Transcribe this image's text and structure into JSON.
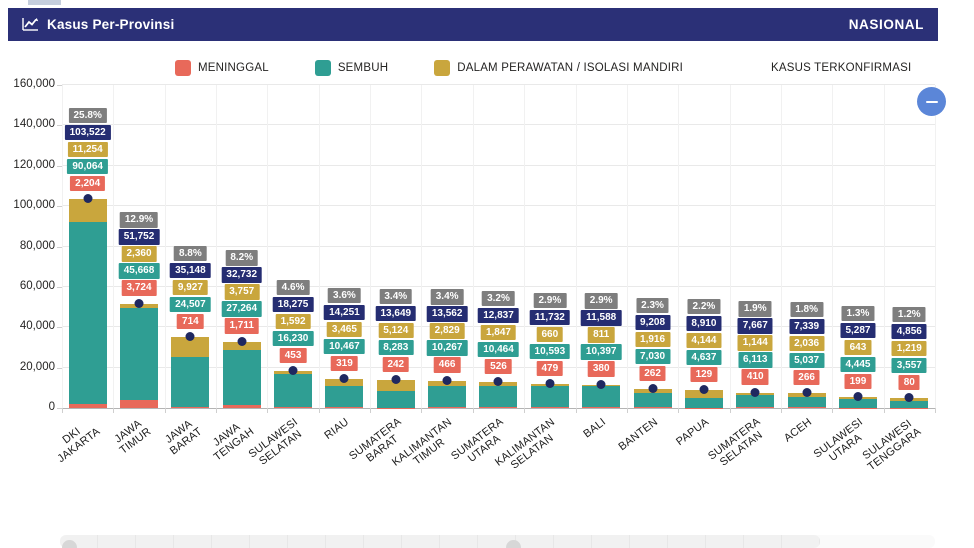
{
  "header": {
    "title": "Kasus Per-Provinsi",
    "region_label": "NASIONAL"
  },
  "legend": [
    {
      "label": "MENINGGAL",
      "color": "#E8695A"
    },
    {
      "label": "SEMBUH",
      "color": "#2F9E93"
    },
    {
      "label": "DALAM PERAWATAN / ISOLASI MANDIRI",
      "color": "#C9A63D"
    },
    {
      "label": "KASUS TERKONFIRMASI",
      "color": null
    }
  ],
  "colors": {
    "header_bg": "#2B3077",
    "percent_box": "#7E7E7E",
    "confirmed_box": "#252D72",
    "confirmed_dot": "#1F2860",
    "scroll_button": "#5B86D8"
  },
  "chart_data": {
    "type": "bar",
    "stacked": true,
    "title": "Kasus Per-Provinsi",
    "xlabel": "",
    "ylabel": "",
    "ylim": [
      0,
      160000
    ],
    "ytick_step": 20000,
    "grid": true,
    "legend_position": "top",
    "categories": [
      "DKI JAKARTA",
      "JAWA TIMUR",
      "JAWA BARAT",
      "JAWA TENGAH",
      "SULAWESI SELATAN",
      "RIAU",
      "SUMATERA BARAT",
      "KALIMANTAN TIMUR",
      "SUMATERA UTARA",
      "KALIMANTAN\nSELATAN",
      "BALI",
      "BANTEN",
      "PAPUA",
      "SUMATERA SELATAN",
      "ACEH",
      "SULAWESI UTARA",
      "SULAWESI\nTENGGARA"
    ],
    "series": [
      {
        "name": "MENINGGAL",
        "color": "#E8695A",
        "values": [
          2204,
          3724,
          714,
          1711,
          453,
          319,
          242,
          466,
          526,
          479,
          380,
          262,
          129,
          410,
          266,
          199,
          80
        ]
      },
      {
        "name": "SEMBUH",
        "color": "#2F9E93",
        "values": [
          90064,
          45668,
          24507,
          27264,
          16230,
          10467,
          8283,
          10267,
          10464,
          10593,
          10397,
          7030,
          4637,
          6113,
          5037,
          4445,
          3557
        ]
      },
      {
        "name": "DALAM PERAWATAN / ISOLASI MANDIRI",
        "color": "#C9A63D",
        "values": [
          11254,
          2360,
          9927,
          3757,
          1592,
          3465,
          5124,
          2829,
          1847,
          660,
          811,
          1916,
          4144,
          1144,
          2036,
          643,
          1219
        ]
      }
    ],
    "totals": {
      "name": "KASUS TERKONFIRMASI",
      "values": [
        103522,
        51752,
        35148,
        32732,
        18275,
        14251,
        13649,
        13562,
        12837,
        11732,
        11588,
        9208,
        8910,
        7667,
        7339,
        5287,
        4856
      ]
    },
    "percent_labels": [
      "25.8%",
      "12.9%",
      "8.8%",
      "8.2%",
      "4.6%",
      "3.6%",
      "3.4%",
      "3.4%",
      "3.2%",
      "2.9%",
      "2.9%",
      "2.3%",
      "2.2%",
      "1.9%",
      "1.8%",
      "1.3%",
      "1.2%"
    ]
  }
}
